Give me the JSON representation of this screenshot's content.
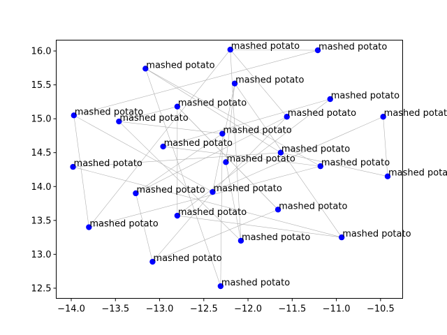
{
  "chart_data": {
    "type": "scatter",
    "title": "",
    "xlabel": "",
    "ylabel": "",
    "xlim": [
      -14.17,
      -10.25
    ],
    "ylim": [
      12.35,
      16.16
    ],
    "xticks": [
      -14.0,
      -13.5,
      -13.0,
      -12.5,
      -12.0,
      -11.5,
      -11.0,
      -10.5
    ],
    "xtick_labels": [
      "−14.0",
      "−13.5",
      "−13.0",
      "−12.5",
      "−12.0",
      "−11.5",
      "−11.0",
      "−10.5"
    ],
    "yticks": [
      12.5,
      13.0,
      13.5,
      14.0,
      14.5,
      15.0,
      15.5,
      16.0
    ],
    "ytick_labels": [
      "12.5",
      "13.0",
      "13.5",
      "14.0",
      "14.5",
      "15.0",
      "15.5",
      "16.0"
    ],
    "point_color": "#0000ff",
    "edge_color": "#b0b0b0",
    "points": [
      {
        "x": -12.2,
        "y": 16.02,
        "label": "mashed potato"
      },
      {
        "x": -11.21,
        "y": 16.01,
        "label": "mashed potato"
      },
      {
        "x": -13.16,
        "y": 15.74,
        "label": "mashed potato"
      },
      {
        "x": -12.15,
        "y": 15.52,
        "label": "mashed potato"
      },
      {
        "x": -11.07,
        "y": 15.29,
        "label": "mashed potato"
      },
      {
        "x": -12.8,
        "y": 15.18,
        "label": "mashed potato"
      },
      {
        "x": -13.97,
        "y": 15.05,
        "label": "mashed potato"
      },
      {
        "x": -11.56,
        "y": 15.03,
        "label": "mashed potato"
      },
      {
        "x": -10.47,
        "y": 15.03,
        "label": "mashed potato"
      },
      {
        "x": -13.46,
        "y": 14.96,
        "label": "mashed potato"
      },
      {
        "x": -12.29,
        "y": 14.78,
        "label": "mashed potato"
      },
      {
        "x": -12.96,
        "y": 14.59,
        "label": "mashed potato"
      },
      {
        "x": -11.63,
        "y": 14.5,
        "label": "mashed potato"
      },
      {
        "x": -12.25,
        "y": 14.36,
        "label": "mashed potato"
      },
      {
        "x": -11.18,
        "y": 14.3,
        "label": "mashed potato"
      },
      {
        "x": -13.98,
        "y": 14.29,
        "label": "mashed potato"
      },
      {
        "x": -10.42,
        "y": 14.15,
        "label": "mashed potato"
      },
      {
        "x": -12.4,
        "y": 13.92,
        "label": "mashed potato"
      },
      {
        "x": -13.27,
        "y": 13.9,
        "label": "mashed potato"
      },
      {
        "x": -11.66,
        "y": 13.66,
        "label": "mashed potato"
      },
      {
        "x": -12.8,
        "y": 13.57,
        "label": "mashed potato"
      },
      {
        "x": -13.8,
        "y": 13.4,
        "label": "mashed potato"
      },
      {
        "x": -10.94,
        "y": 13.25,
        "label": "mashed potato"
      },
      {
        "x": -12.08,
        "y": 13.2,
        "label": "mashed potato"
      },
      {
        "x": -13.08,
        "y": 12.89,
        "label": "mashed potato"
      },
      {
        "x": -12.31,
        "y": 12.53,
        "label": "mashed potato"
      }
    ],
    "edges": [
      [
        0,
        1
      ],
      [
        0,
        7
      ],
      [
        0,
        23
      ],
      [
        0,
        21
      ],
      [
        1,
        6
      ],
      [
        2,
        14
      ],
      [
        2,
        12
      ],
      [
        3,
        13
      ],
      [
        3,
        22
      ],
      [
        3,
        17
      ],
      [
        4,
        20
      ],
      [
        4,
        11
      ],
      [
        5,
        20
      ],
      [
        5,
        19
      ],
      [
        5,
        9
      ],
      [
        6,
        17
      ],
      [
        6,
        21
      ],
      [
        7,
        18
      ],
      [
        7,
        17
      ],
      [
        8,
        16
      ],
      [
        8,
        17
      ],
      [
        9,
        23
      ],
      [
        9,
        10
      ],
      [
        10,
        18
      ],
      [
        10,
        25
      ],
      [
        11,
        14
      ],
      [
        12,
        15
      ],
      [
        13,
        23
      ],
      [
        14,
        21
      ],
      [
        15,
        22
      ],
      [
        16,
        12
      ],
      [
        17,
        24
      ],
      [
        18,
        24
      ],
      [
        19,
        24
      ],
      [
        19,
        5
      ],
      [
        20,
        22
      ],
      [
        25,
        2
      ]
    ],
    "grid": false,
    "legend": "none"
  }
}
